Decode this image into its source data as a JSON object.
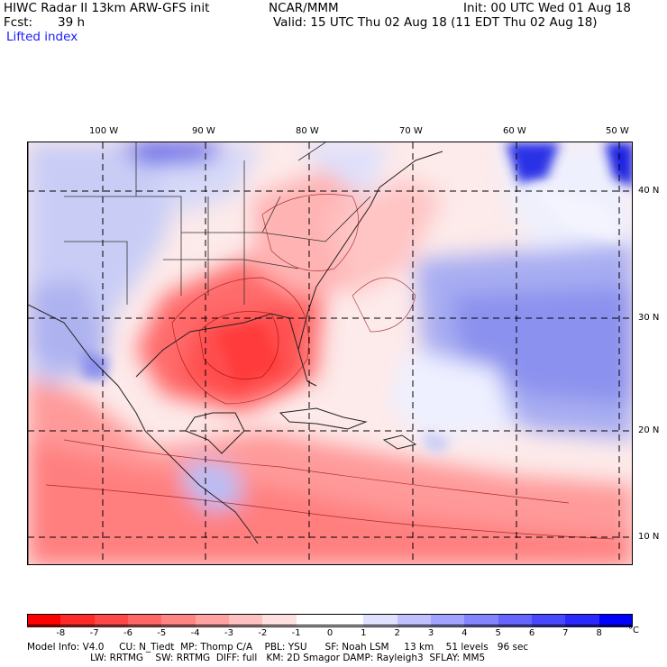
{
  "header": {
    "model_title": "HIWC Radar II 13km ARW-GFS init",
    "org": "NCAR/MMM",
    "init": "Init: 00 UTC Wed 01 Aug 18",
    "fcst_label": "Fcst:",
    "fcst_value": "39 h",
    "valid": "Valid: 15 UTC Thu 02 Aug 18 (11 EDT Thu 02 Aug 18)",
    "field": "Lifted index"
  },
  "map": {
    "longitude_labels": [
      "100 W",
      "90 W",
      "80 W",
      "70 W",
      "60 W",
      "50 W"
    ],
    "latitude_labels": [
      "40 N",
      "30 N",
      "20 N",
      "10 N"
    ]
  },
  "colorbar": {
    "unit": "°C",
    "labels": [
      "-8",
      "-7",
      "-6",
      "-5",
      "-4",
      "-3",
      "-2",
      "-1",
      "0",
      "1",
      "2",
      "3",
      "4",
      "5",
      "6",
      "7",
      "8"
    ],
    "colors": [
      "#ff0000",
      "#ff2a2a",
      "#ff4848",
      "#ff6666",
      "#ff8484",
      "#ffa2a2",
      "#ffc0c0",
      "#ffe0e0",
      "#ffffff",
      "#ffffff",
      "#e0e0ff",
      "#c0c0ff",
      "#a2a2ff",
      "#8484ff",
      "#6666ff",
      "#4848ff",
      "#2a2aff",
      "#0000ff"
    ]
  },
  "footer": {
    "line1": "Model Info: V4.0     CU: N_Tiedt  MP: Thomp C/A    PBL: YSU      SF: Noah LSM     13 km    51 levels   96 sec",
    "line2": "                     LW: RRTMG    SW: RRTMG  DIFF: full   KM: 2D Smagor DAMP: Rayleigh3  SFLAY: MM5"
  }
}
